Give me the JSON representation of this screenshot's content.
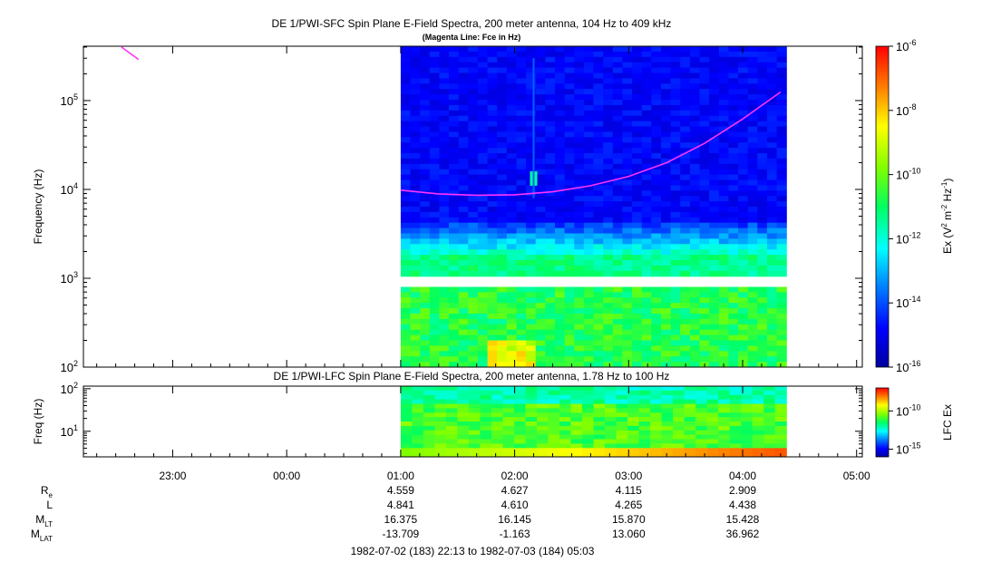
{
  "chart_data": [
    {
      "type": "heatmap",
      "title": "DE 1/PWI-SFC  Spin Plane E-Field Spectra, 200 meter antenna, 104 Hz to 409 kHz",
      "subtitle": "(Magenta Line: Fce in Hz)",
      "ylabel": "Frequency (Hz)",
      "yscale": "log",
      "ylim": [
        100,
        409000
      ],
      "yticks": [
        {
          "exp": "2",
          "value": 100
        },
        {
          "exp": "3",
          "value": 1000
        },
        {
          "exp": "4",
          "value": 10000
        },
        {
          "exp": "5",
          "value": 100000
        }
      ],
      "data_start": "01:00",
      "data_end": "04:23",
      "gap_hz": [
        900,
        1050
      ],
      "fce_line": {
        "name": "Fce in Hz",
        "color": "#ff33ff",
        "points": [
          [
            "22:33",
            400000
          ],
          [
            "22:42",
            290000
          ],
          [
            "01:00",
            9800
          ],
          [
            "01:20",
            8900
          ],
          [
            "01:40",
            8600
          ],
          [
            "02:00",
            8700
          ],
          [
            "02:20",
            9400
          ],
          [
            "02:40",
            11000
          ],
          [
            "03:00",
            14000
          ],
          [
            "03:20",
            20000
          ],
          [
            "03:40",
            33000
          ],
          [
            "04:00",
            62000
          ],
          [
            "04:20",
            125000
          ]
        ]
      },
      "colorbar": {
        "label_main": "Ex (V",
        "label_sup1": "2",
        "label_mid": " m",
        "label_sup2": "-2",
        "label_mid2": " Hz",
        "label_sup3": "-1",
        "label_end": ")",
        "scale": "log",
        "range": [
          1e-16,
          1e-06
        ],
        "ticks": [
          {
            "text": "10",
            "exp": "-6",
            "value": 1e-06
          },
          {
            "text": "10",
            "exp": "-8",
            "value": 1e-08
          },
          {
            "text": "10",
            "exp": "-10",
            "value": 1e-10
          },
          {
            "text": "10",
            "exp": "-12",
            "value": 1e-12
          },
          {
            "text": "10",
            "exp": "-14",
            "value": 1e-14
          },
          {
            "text": "10",
            "exp": "-16",
            "value": 1e-16
          }
        ]
      }
    },
    {
      "type": "heatmap",
      "title": "DE 1/PWI-LFC  Spin Plane E-Field Spectra, 200 meter antenna, 1.78 Hz to 100 Hz",
      "ylabel": "Freq (Hz)",
      "yscale": "log",
      "ylim": [
        2.5,
        115
      ],
      "yticks": [
        {
          "exp": "1",
          "value": 10
        },
        {
          "exp": "2",
          "value": 100
        }
      ],
      "data_start": "01:00",
      "data_end": "04:23",
      "colorbar": {
        "label": "LFC Ex",
        "scale": "log",
        "range": [
          1e-16,
          1e-07
        ],
        "ticks": [
          {
            "text": "10",
            "exp": "-10",
            "value": 1e-10
          },
          {
            "text": "10",
            "exp": "-15",
            "value": 1e-15
          }
        ]
      }
    }
  ],
  "xaxis": {
    "start": "1982-07-02T22:13",
    "end": "1982-07-03T05:03",
    "major_ticks": [
      "23:00",
      "00:00",
      "01:00",
      "02:00",
      "03:00",
      "04:00",
      "05:00"
    ],
    "footer": "1982-07-02 (183) 22:13 to 1982-07-03 (184) 05:03"
  },
  "ephemeris": {
    "rows": [
      {
        "label": "R",
        "sub": "e",
        "values": [
          "4.559",
          "4.627",
          "4.115",
          "2.909"
        ]
      },
      {
        "label": "L",
        "sub": "",
        "values": [
          "4.841",
          "4.610",
          "4.265",
          "4.438"
        ]
      },
      {
        "label": "M",
        "sub": "LT",
        "values": [
          "16.375",
          "16.145",
          "15.870",
          "15.428"
        ]
      },
      {
        "label": "M",
        "sub": "LAT",
        "values": [
          "-13.709",
          "-1.163",
          "13.060",
          "36.962"
        ]
      }
    ],
    "times": [
      "01:00",
      "02:00",
      "03:00",
      "04:00"
    ]
  }
}
